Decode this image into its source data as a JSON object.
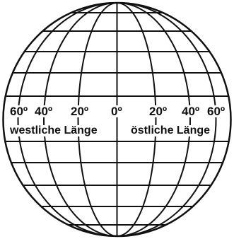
{
  "degree_labels": {
    "w60": "60º",
    "w40": "40º",
    "w20": "20º",
    "zero": "0º",
    "e20": "20º",
    "e40": "40º",
    "e60": "60º"
  },
  "longitude_labels": {
    "west": "westliche Länge",
    "east": "östliche Länge"
  },
  "colors": {
    "line": "#111111",
    "background": "#ffffff"
  }
}
